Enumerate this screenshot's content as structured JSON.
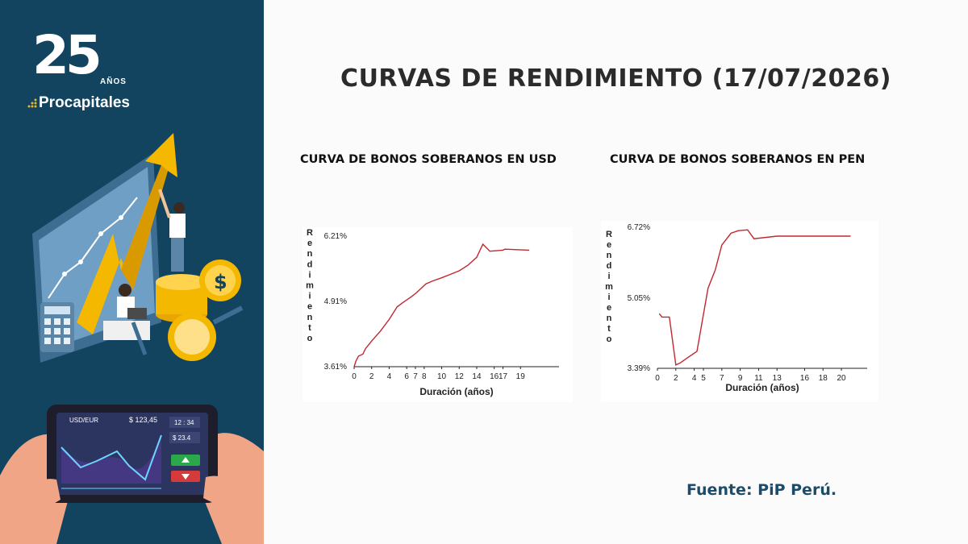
{
  "brand": {
    "anniversary": "25",
    "anos": "AÑOS",
    "name": "Procapitales"
  },
  "illustration": {
    "phone_pair": "USD/EUR",
    "phone_price": "$ 123,45",
    "phone_time": "12 : 34",
    "phone_value": "$ 23.4"
  },
  "title": "CURVAS DE RENDIMIENTO (17/07/2026)",
  "source": "Fuente: PiP Perú.",
  "colors": {
    "sidebar": "#124460",
    "curve": "#c0282d",
    "source_text": "#1c4c6b"
  },
  "chart_data": [
    {
      "type": "line",
      "title": "CURVA DE BONOS SOBERANOS EN USD",
      "xlabel": "Duración (años)",
      "ylabel": "Rendimiento",
      "xlim": [
        0,
        23.4
      ],
      "ylim": [
        3.61,
        6.21
      ],
      "x_ticks": [
        "0",
        "2",
        "4",
        "6",
        "7",
        "8",
        "10",
        "12",
        "14",
        "16",
        "17",
        "19"
      ],
      "x_tick_values": [
        0,
        2,
        4,
        6,
        7,
        8,
        10,
        12,
        14,
        16,
        17,
        19
      ],
      "y_ticks": [
        "3.61%",
        "4.91%",
        "6.21%"
      ],
      "y_tick_values": [
        3.61,
        4.91,
        6.21
      ],
      "series": [
        {
          "x": [
            0,
            0.2,
            0.5,
            1.0,
            1.3,
            2.0,
            3.0,
            4.0,
            4.9,
            5.5,
            6.5,
            7.1,
            7.7,
            8.2,
            9.0,
            10.0,
            11.0,
            12.0,
            13.0,
            14.0,
            14.7,
            15.5,
            17.0,
            17.2,
            20.0
          ],
          "y": [
            3.61,
            3.72,
            3.82,
            3.86,
            3.97,
            4.12,
            4.32,
            4.55,
            4.8,
            4.88,
            5.0,
            5.08,
            5.18,
            5.26,
            5.32,
            5.38,
            5.45,
            5.52,
            5.63,
            5.79,
            6.05,
            5.91,
            5.93,
            5.95,
            5.93
          ]
        }
      ]
    },
    {
      "type": "line",
      "title": "CURVA DE BONOS SOBERANOS EN PEN",
      "xlabel": "Duración (años)",
      "ylabel": "Rendimiento",
      "xlim": [
        0,
        22.8
      ],
      "ylim": [
        3.39,
        6.72
      ],
      "x_ticks": [
        "0",
        "2",
        "4",
        "5",
        "7",
        "9",
        "11",
        "13",
        "16",
        "18",
        "20"
      ],
      "x_tick_values": [
        0,
        2,
        4,
        5,
        7,
        9,
        11,
        13,
        16,
        18,
        20
      ],
      "y_ticks": [
        "3.39%",
        "5.05%",
        "6.72%"
      ],
      "y_tick_values": [
        3.39,
        5.05,
        6.72
      ],
      "series": [
        {
          "x": [
            0.2,
            0.5,
            1.3,
            2.0,
            2.5,
            3.2,
            4.3,
            5.5,
            6.3,
            7.0,
            8.0,
            8.8,
            9.8,
            10.5,
            13.0,
            21.0
          ],
          "y": [
            4.68,
            4.6,
            4.6,
            3.47,
            3.52,
            3.63,
            3.79,
            5.28,
            5.72,
            6.3,
            6.58,
            6.64,
            6.66,
            6.45,
            6.51,
            6.51
          ]
        }
      ]
    }
  ]
}
